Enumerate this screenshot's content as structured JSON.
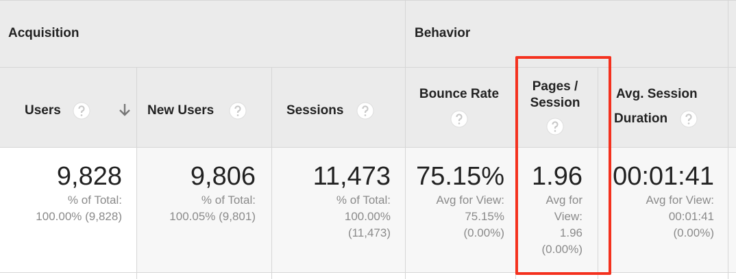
{
  "header_groups": [
    "Acquisition",
    "Behavior"
  ],
  "columns": [
    {
      "label": [
        "Users"
      ],
      "value": "9,828",
      "summary": [
        "% of Total:",
        "100.00% (9,828)"
      ]
    },
    {
      "label": [
        "New Users"
      ],
      "value": "9,806",
      "summary": [
        "% of Total:",
        "100.05% (9,801)"
      ]
    },
    {
      "label": [
        "Sessions"
      ],
      "value": "11,473",
      "summary": [
        "% of Total:",
        "100.00%",
        "(11,473)"
      ]
    },
    {
      "label": [
        "Bounce Rate"
      ],
      "value": "75.15%",
      "summary": [
        "Avg for View:",
        "75.15%",
        "(0.00%)"
      ]
    },
    {
      "label": [
        "Pages /",
        "Session"
      ],
      "value": "1.96",
      "summary": [
        "Avg for",
        "View:",
        "1.96",
        "(0.00%)"
      ]
    },
    {
      "label": [
        "Avg. Session",
        "Duration"
      ],
      "value": "00:01:41",
      "summary": [
        "Avg for View:",
        "00:01:41",
        "(0.00%)"
      ]
    }
  ]
}
